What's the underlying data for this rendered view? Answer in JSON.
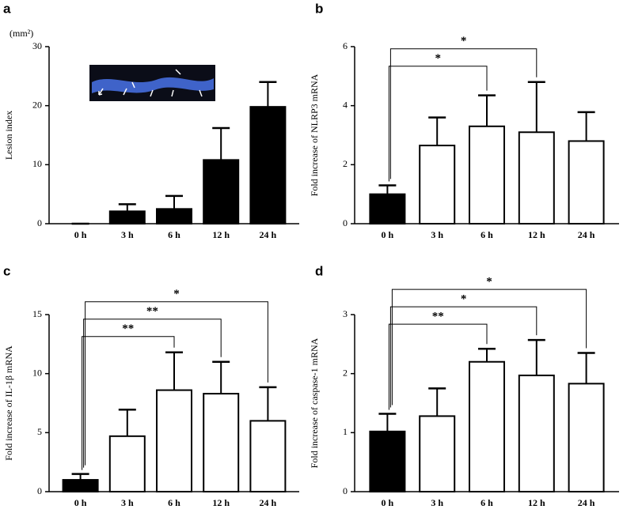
{
  "chart_data": [
    {
      "type": "bar",
      "panel": "a",
      "ylabel": "Lesion index",
      "y_unit": "(mm²)",
      "categories": [
        "0 h",
        "3 h",
        "6 h",
        "12 h",
        "24 h"
      ],
      "values": [
        0,
        2.1,
        2.5,
        10.8,
        19.8
      ],
      "errors": [
        0,
        1.2,
        2.2,
        5.4,
        4.2
      ],
      "colors": [
        "#000000",
        "#000000",
        "#000000",
        "#000000",
        "#000000"
      ],
      "ylim": [
        0,
        30
      ],
      "yticks": [
        0,
        10,
        20,
        30
      ],
      "significance": []
    },
    {
      "type": "bar",
      "panel": "b",
      "ylabel": "Fold increase of NLRP3 mRNA",
      "categories": [
        "0 h",
        "3 h",
        "6 h",
        "12 h",
        "24 h"
      ],
      "values": [
        1.0,
        2.65,
        3.3,
        3.1,
        2.8
      ],
      "errors": [
        0.3,
        0.95,
        1.05,
        1.7,
        0.98
      ],
      "colors": [
        "#000000",
        "#ffffff",
        "#ffffff",
        "#ffffff",
        "#ffffff"
      ],
      "ylim": [
        0,
        6
      ],
      "yticks": [
        0,
        2,
        4,
        6
      ],
      "significance": [
        {
          "from": "0 h",
          "to": "6 h",
          "label": "*"
        },
        {
          "from": "0 h",
          "to": "12 h",
          "label": "*"
        }
      ]
    },
    {
      "type": "bar",
      "panel": "c",
      "ylabel": "Fold increase of IL-1β mRNA",
      "categories": [
        "0 h",
        "3 h",
        "6 h",
        "12 h",
        "24 h"
      ],
      "values": [
        1.0,
        4.7,
        8.6,
        8.3,
        6.0
      ],
      "errors": [
        0.5,
        2.25,
        3.2,
        2.7,
        2.85
      ],
      "colors": [
        "#000000",
        "#ffffff",
        "#ffffff",
        "#ffffff",
        "#ffffff"
      ],
      "ylim": [
        0,
        15
      ],
      "yticks": [
        0,
        5,
        10,
        15
      ],
      "significance": [
        {
          "from": "0 h",
          "to": "6 h",
          "label": "**"
        },
        {
          "from": "0 h",
          "to": "12 h",
          "label": "**"
        },
        {
          "from": "0 h",
          "to": "24 h",
          "label": "*"
        }
      ]
    },
    {
      "type": "bar",
      "panel": "d",
      "ylabel": "Fold increase of caspase-1 mRNA",
      "categories": [
        "0 h",
        "3 h",
        "6 h",
        "12 h",
        "24 h"
      ],
      "values": [
        1.02,
        1.28,
        2.2,
        1.97,
        1.83
      ],
      "errors": [
        0.3,
        0.47,
        0.22,
        0.6,
        0.52
      ],
      "colors": [
        "#000000",
        "#ffffff",
        "#ffffff",
        "#ffffff",
        "#ffffff"
      ],
      "ylim": [
        0,
        3
      ],
      "yticks": [
        0,
        1,
        2,
        3
      ],
      "significance": [
        {
          "from": "0 h",
          "to": "6 h",
          "label": "**"
        },
        {
          "from": "0 h",
          "to": "12 h",
          "label": "*"
        },
        {
          "from": "0 h",
          "to": "24 h",
          "label": "*"
        }
      ]
    }
  ]
}
